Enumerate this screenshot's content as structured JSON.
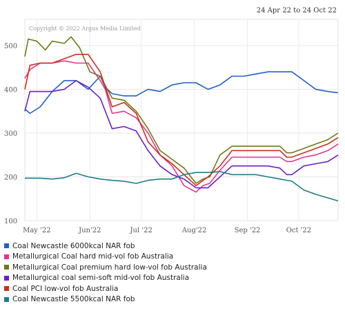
{
  "date_range": "24 Apr 22 to 24 Oct 22",
  "copyright": "Copyright © 2022 Argus Media Limited",
  "chart_data": {
    "type": "line",
    "title": "",
    "xlabel": "",
    "ylabel": "",
    "x_start": "2022-04-24",
    "x_end": "2022-10-24",
    "x_ticks": [
      {
        "label": "May '22",
        "date": "2022-05-01"
      },
      {
        "label": "Jun'22",
        "date": "2022-06-01"
      },
      {
        "label": "Jul '22",
        "date": "2022-07-01"
      },
      {
        "label": "Aug'22",
        "date": "2022-08-01"
      },
      {
        "label": "Sep '22",
        "date": "2022-09-01"
      },
      {
        "label": "Oct '22",
        "date": "2022-10-01"
      }
    ],
    "ylim": [
      100,
      560
    ],
    "y_ticks": [
      100,
      200,
      300,
      400,
      500
    ],
    "grid": true,
    "legend_position": "bottom-left",
    "series": [
      {
        "name": "Coal Newcastle 6000kcal NAR fob",
        "color": "#1f5fc9",
        "points": [
          [
            "2022-04-24",
            355
          ],
          [
            "2022-04-27",
            345
          ],
          [
            "2022-05-03",
            360
          ],
          [
            "2022-05-06",
            375
          ],
          [
            "2022-05-10",
            395
          ],
          [
            "2022-05-17",
            420
          ],
          [
            "2022-05-24",
            420
          ],
          [
            "2022-05-31",
            400
          ],
          [
            "2022-06-07",
            430
          ],
          [
            "2022-06-10",
            405
          ],
          [
            "2022-06-14",
            390
          ],
          [
            "2022-06-21",
            385
          ],
          [
            "2022-06-28",
            385
          ],
          [
            "2022-07-05",
            400
          ],
          [
            "2022-07-12",
            395
          ],
          [
            "2022-07-19",
            410
          ],
          [
            "2022-07-26",
            415
          ],
          [
            "2022-08-02",
            415
          ],
          [
            "2022-08-09",
            400
          ],
          [
            "2022-08-16",
            410
          ],
          [
            "2022-08-23",
            430
          ],
          [
            "2022-08-30",
            430
          ],
          [
            "2022-09-06",
            435
          ],
          [
            "2022-09-13",
            440
          ],
          [
            "2022-09-20",
            440
          ],
          [
            "2022-09-27",
            440
          ],
          [
            "2022-10-04",
            420
          ],
          [
            "2022-10-11",
            400
          ],
          [
            "2022-10-18",
            395
          ],
          [
            "2022-10-24",
            392
          ]
        ]
      },
      {
        "name": "Metallurgical Coal hard mid-vol fob Australia",
        "color": "#e3348f",
        "points": [
          [
            "2022-04-24",
            425
          ],
          [
            "2022-04-27",
            445
          ],
          [
            "2022-05-03",
            460
          ],
          [
            "2022-05-10",
            460
          ],
          [
            "2022-05-17",
            465
          ],
          [
            "2022-05-24",
            460
          ],
          [
            "2022-05-31",
            460
          ],
          [
            "2022-06-07",
            420
          ],
          [
            "2022-06-10",
            400
          ],
          [
            "2022-06-14",
            345
          ],
          [
            "2022-06-21",
            350
          ],
          [
            "2022-06-28",
            335
          ],
          [
            "2022-07-05",
            300
          ],
          [
            "2022-07-12",
            250
          ],
          [
            "2022-07-19",
            225
          ],
          [
            "2022-07-26",
            180
          ],
          [
            "2022-08-02",
            165
          ],
          [
            "2022-08-06",
            180
          ],
          [
            "2022-08-10",
            185
          ],
          [
            "2022-08-16",
            215
          ],
          [
            "2022-08-23",
            245
          ],
          [
            "2022-08-30",
            245
          ],
          [
            "2022-09-06",
            245
          ],
          [
            "2022-09-13",
            245
          ],
          [
            "2022-09-20",
            245
          ],
          [
            "2022-09-24",
            235
          ],
          [
            "2022-09-27",
            235
          ],
          [
            "2022-10-04",
            245
          ],
          [
            "2022-10-11",
            250
          ],
          [
            "2022-10-18",
            260
          ],
          [
            "2022-10-24",
            275
          ]
        ]
      },
      {
        "name": "Metallurgical Coal premium hard low-vol fob Australia",
        "color": "#6b7a12",
        "points": [
          [
            "2022-04-24",
            475
          ],
          [
            "2022-04-26",
            515
          ],
          [
            "2022-05-01",
            510
          ],
          [
            "2022-05-06",
            490
          ],
          [
            "2022-05-10",
            510
          ],
          [
            "2022-05-17",
            505
          ],
          [
            "2022-05-21",
            520
          ],
          [
            "2022-05-26",
            495
          ],
          [
            "2022-06-01",
            440
          ],
          [
            "2022-06-07",
            430
          ],
          [
            "2022-06-14",
            380
          ],
          [
            "2022-06-21",
            375
          ],
          [
            "2022-06-28",
            350
          ],
          [
            "2022-07-05",
            310
          ],
          [
            "2022-07-12",
            260
          ],
          [
            "2022-07-19",
            240
          ],
          [
            "2022-07-26",
            220
          ],
          [
            "2022-08-02",
            185
          ],
          [
            "2022-08-06",
            195
          ],
          [
            "2022-08-10",
            200
          ],
          [
            "2022-08-16",
            250
          ],
          [
            "2022-08-23",
            270
          ],
          [
            "2022-08-30",
            270
          ],
          [
            "2022-09-06",
            270
          ],
          [
            "2022-09-13",
            270
          ],
          [
            "2022-09-20",
            270
          ],
          [
            "2022-09-24",
            255
          ],
          [
            "2022-09-27",
            255
          ],
          [
            "2022-10-04",
            265
          ],
          [
            "2022-10-11",
            275
          ],
          [
            "2022-10-18",
            285
          ],
          [
            "2022-10-24",
            300
          ]
        ]
      },
      {
        "name": "Metallurgical coal semi-soft mid-vol fob Australia",
        "color": "#6a1fc9",
        "points": [
          [
            "2022-04-24",
            350
          ],
          [
            "2022-04-27",
            395
          ],
          [
            "2022-05-03",
            395
          ],
          [
            "2022-05-10",
            395
          ],
          [
            "2022-05-17",
            400
          ],
          [
            "2022-05-24",
            420
          ],
          [
            "2022-05-31",
            405
          ],
          [
            "2022-06-07",
            380
          ],
          [
            "2022-06-14",
            310
          ],
          [
            "2022-06-21",
            315
          ],
          [
            "2022-06-28",
            305
          ],
          [
            "2022-07-05",
            260
          ],
          [
            "2022-07-12",
            225
          ],
          [
            "2022-07-19",
            205
          ],
          [
            "2022-07-26",
            195
          ],
          [
            "2022-08-02",
            175
          ],
          [
            "2022-08-09",
            175
          ],
          [
            "2022-08-16",
            200
          ],
          [
            "2022-08-23",
            225
          ],
          [
            "2022-08-30",
            225
          ],
          [
            "2022-09-06",
            225
          ],
          [
            "2022-09-13",
            225
          ],
          [
            "2022-09-20",
            220
          ],
          [
            "2022-09-24",
            205
          ],
          [
            "2022-09-27",
            205
          ],
          [
            "2022-10-04",
            225
          ],
          [
            "2022-10-11",
            230
          ],
          [
            "2022-10-18",
            235
          ],
          [
            "2022-10-24",
            250
          ]
        ]
      },
      {
        "name": "Coal PCI low-vol fob Australia",
        "color": "#d12b1c",
        "points": [
          [
            "2022-04-24",
            400
          ],
          [
            "2022-04-27",
            455
          ],
          [
            "2022-05-03",
            460
          ],
          [
            "2022-05-10",
            460
          ],
          [
            "2022-05-17",
            470
          ],
          [
            "2022-05-24",
            480
          ],
          [
            "2022-05-31",
            480
          ],
          [
            "2022-06-07",
            440
          ],
          [
            "2022-06-14",
            360
          ],
          [
            "2022-06-21",
            370
          ],
          [
            "2022-06-28",
            345
          ],
          [
            "2022-07-05",
            280
          ],
          [
            "2022-07-12",
            250
          ],
          [
            "2022-07-19",
            230
          ],
          [
            "2022-07-26",
            205
          ],
          [
            "2022-08-02",
            180
          ],
          [
            "2022-08-09",
            200
          ],
          [
            "2022-08-16",
            225
          ],
          [
            "2022-08-23",
            260
          ],
          [
            "2022-08-30",
            260
          ],
          [
            "2022-09-06",
            260
          ],
          [
            "2022-09-13",
            260
          ],
          [
            "2022-09-20",
            260
          ],
          [
            "2022-09-24",
            245
          ],
          [
            "2022-09-27",
            245
          ],
          [
            "2022-10-04",
            255
          ],
          [
            "2022-10-11",
            265
          ],
          [
            "2022-10-18",
            275
          ],
          [
            "2022-10-24",
            290
          ]
        ]
      },
      {
        "name": "Coal Newcastle 5500kcal NAR fob",
        "color": "#1f7a8c",
        "points": [
          [
            "2022-04-24",
            197
          ],
          [
            "2022-05-03",
            197
          ],
          [
            "2022-05-10",
            195
          ],
          [
            "2022-05-17",
            198
          ],
          [
            "2022-05-24",
            208
          ],
          [
            "2022-05-31",
            200
          ],
          [
            "2022-06-07",
            195
          ],
          [
            "2022-06-14",
            192
          ],
          [
            "2022-06-21",
            190
          ],
          [
            "2022-06-28",
            185
          ],
          [
            "2022-07-05",
            192
          ],
          [
            "2022-07-12",
            195
          ],
          [
            "2022-07-19",
            195
          ],
          [
            "2022-07-26",
            205
          ],
          [
            "2022-08-02",
            210
          ],
          [
            "2022-08-09",
            210
          ],
          [
            "2022-08-16",
            212
          ],
          [
            "2022-08-23",
            205
          ],
          [
            "2022-08-30",
            205
          ],
          [
            "2022-09-06",
            205
          ],
          [
            "2022-09-13",
            200
          ],
          [
            "2022-09-20",
            195
          ],
          [
            "2022-09-27",
            190
          ],
          [
            "2022-10-04",
            170
          ],
          [
            "2022-10-11",
            160
          ],
          [
            "2022-10-18",
            152
          ],
          [
            "2022-10-24",
            145
          ]
        ]
      }
    ]
  }
}
